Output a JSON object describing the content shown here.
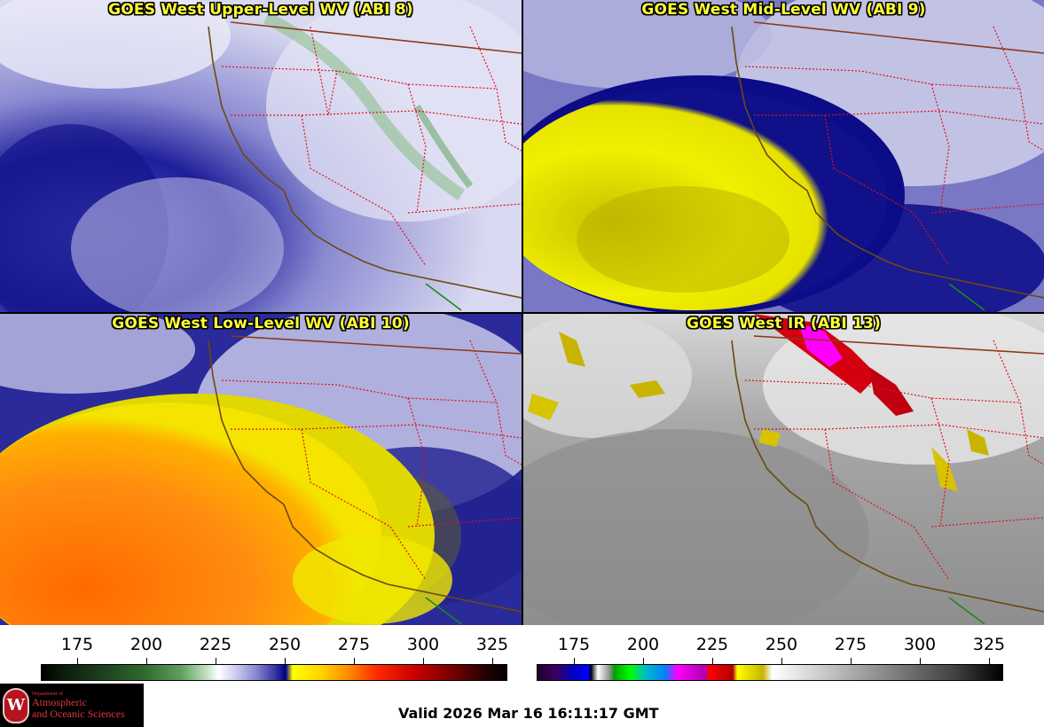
{
  "panels": [
    {
      "id": "p1",
      "title": "GOES West Upper-Level WV (ABI 8)"
    },
    {
      "id": "p2",
      "title": "GOES West Mid-Level WV (ABI 9)"
    },
    {
      "id": "p3",
      "title": "GOES West Low-Level WV (ABI 10)"
    },
    {
      "id": "p4",
      "title": "GOES West IR (ABI 13)"
    }
  ],
  "scales": {
    "wv": {
      "ticks": [
        "175",
        "200",
        "225",
        "250",
        "275",
        "300",
        "325"
      ]
    },
    "ir": {
      "ticks": [
        "175",
        "200",
        "225",
        "250",
        "275",
        "300",
        "325"
      ]
    }
  },
  "logo": {
    "small_text": "Department of",
    "line1": "Atmospheric",
    "line2": "and Oceanic Sciences",
    "seal_letter": "W"
  },
  "valid_time": "Valid 2026 Mar 16 16:11:17 GMT"
}
